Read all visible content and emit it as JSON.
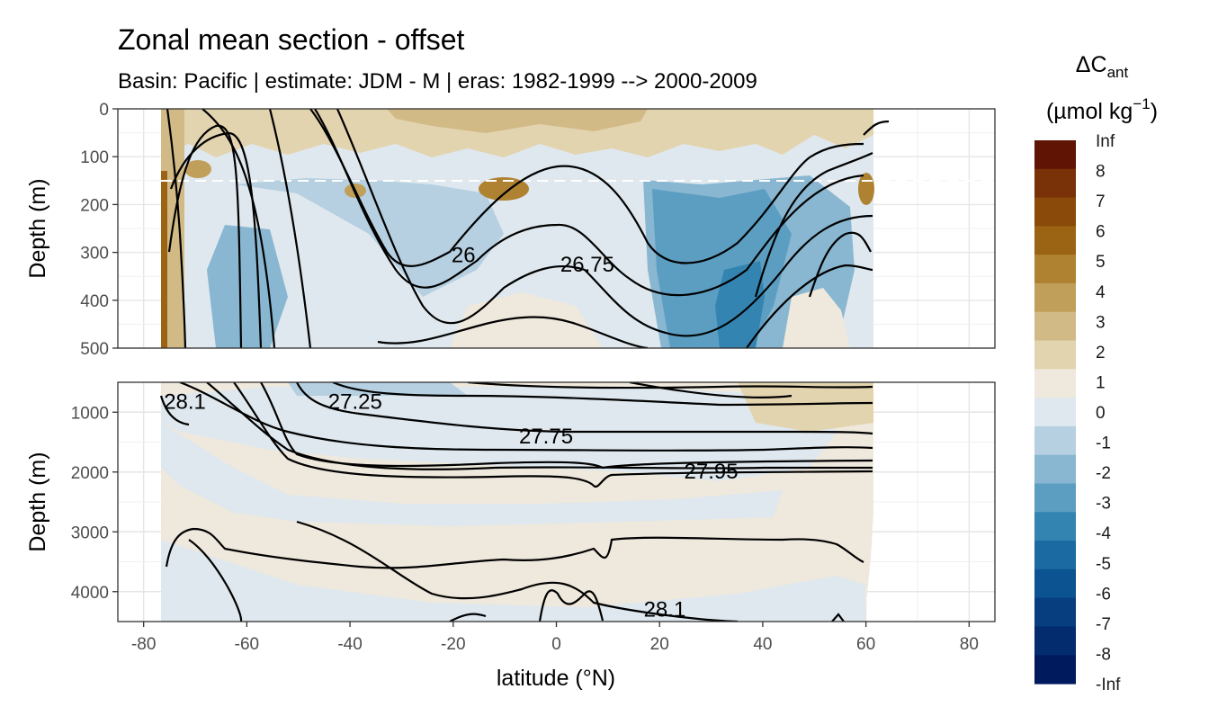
{
  "chart_data": {
    "type": "heatmap",
    "title": "Zonal mean section - offset",
    "subtitle": "Basin: Pacific | estimate: JDM - M | eras: 1982-1999 --> 2000-2009",
    "xlabel": "latitude (°N)",
    "ylabel": "Depth (m)",
    "xlim": [
      -85,
      85
    ],
    "x_ticks": [
      -80,
      -60,
      -40,
      -20,
      0,
      20,
      40,
      60,
      80
    ],
    "data_lat_range": [
      -77,
      62
    ],
    "grid": true,
    "panels": [
      {
        "name": "upper",
        "ylim": [
          0,
          500
        ],
        "y_ticks": [
          0,
          100,
          200,
          300,
          400,
          500
        ],
        "y_reversed": true,
        "dashed_reference_depth": 150,
        "contour_labels": [
          {
            "text": "26",
            "lat": -18,
            "depth": 305
          },
          {
            "text": "26.75",
            "lat": 6,
            "depth": 325
          }
        ]
      },
      {
        "name": "lower",
        "ylim": [
          500,
          4500
        ],
        "y_ticks": [
          1000,
          2000,
          3000,
          4000
        ],
        "y_reversed": true,
        "contour_labels": [
          {
            "text": "28.1",
            "lat": -72,
            "depth": 820
          },
          {
            "text": "27.25",
            "lat": -39,
            "depth": 820
          },
          {
            "text": "27.75",
            "lat": -2,
            "depth": 1400
          },
          {
            "text": "27.95",
            "lat": 30,
            "depth": 1990
          },
          {
            "text": "28.1",
            "lat": 21,
            "depth": 4300
          }
        ]
      }
    ],
    "legend": {
      "title_main": "ΔC",
      "title_sub": "ant",
      "unit_prefix": "(µmol kg",
      "unit_sup": "−1",
      "unit_suffix": ")",
      "placement": "right",
      "labels": [
        "Inf",
        "8",
        "7",
        "6",
        "5",
        "4",
        "3",
        "2",
        "1",
        "0",
        "-1",
        "-2",
        "-3",
        "-4",
        "-5",
        "-6",
        "-7",
        "-8",
        "-Inf"
      ],
      "colors": [
        "#5f1404",
        "#793108",
        "#8a4a0a",
        "#9b6414",
        "#af8232",
        "#c09f5a",
        "#d2ba87",
        "#e3d4b0",
        "#efe8dc",
        "#dfe8ee",
        "#b6d0e1",
        "#89b7d1",
        "#5c9ec2",
        "#3484b1",
        "#1b6aa1",
        "#0b5391",
        "#073e80",
        "#032c6f",
        "#001a5e"
      ]
    }
  }
}
